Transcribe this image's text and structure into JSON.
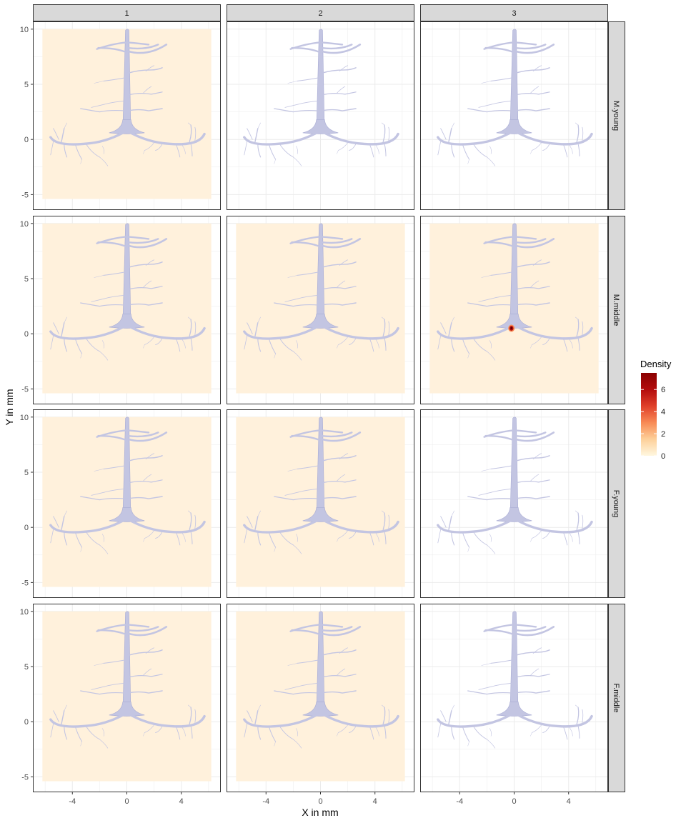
{
  "chart_data": {
    "type": "heatmap",
    "title": "",
    "xlabel": "X in mm",
    "ylabel": "Y in mm",
    "xlim": [
      -6.9,
      6.9
    ],
    "ylim": [
      -6.4,
      10.7
    ],
    "x_ticks": [
      -4,
      0,
      4
    ],
    "y_ticks": [
      -5,
      0,
      5,
      10
    ],
    "grid": true,
    "col_facets": [
      "1",
      "2",
      "3"
    ],
    "row_facets": [
      "M.young",
      "M.middle",
      "F.young",
      "F.middle"
    ],
    "density_region": {
      "x": [
        -6.2,
        6.2
      ],
      "y": [
        -5.4,
        10
      ]
    },
    "panels": [
      {
        "row": "M.young",
        "col": "1",
        "has_density": true,
        "hotspots": []
      },
      {
        "row": "M.young",
        "col": "2",
        "has_density": false,
        "hotspots": []
      },
      {
        "row": "M.young",
        "col": "3",
        "has_density": false,
        "hotspots": []
      },
      {
        "row": "M.middle",
        "col": "1",
        "has_density": true,
        "hotspots": []
      },
      {
        "row": "M.middle",
        "col": "2",
        "has_density": true,
        "hotspots": []
      },
      {
        "row": "M.middle",
        "col": "3",
        "has_density": true,
        "hotspots": [
          {
            "x": -0.2,
            "y": 0.5,
            "density": 7.5
          }
        ]
      },
      {
        "row": "F.young",
        "col": "1",
        "has_density": true,
        "hotspots": []
      },
      {
        "row": "F.young",
        "col": "2",
        "has_density": true,
        "hotspots": []
      },
      {
        "row": "F.young",
        "col": "3",
        "has_density": false,
        "hotspots": []
      },
      {
        "row": "F.middle",
        "col": "1",
        "has_density": true,
        "hotspots": []
      },
      {
        "row": "F.middle",
        "col": "2",
        "has_density": true,
        "hotspots": []
      },
      {
        "row": "F.middle",
        "col": "3",
        "has_density": false,
        "hotspots": []
      }
    ],
    "legend": {
      "title": "Density",
      "breaks": [
        0,
        2,
        4,
        6
      ],
      "range": [
        0,
        7.5
      ],
      "colors": [
        "#fff7e0",
        "#fdd09a",
        "#f88a55",
        "#e0402a",
        "#b30c0c",
        "#8a0000"
      ],
      "position": "right"
    },
    "colors": {
      "background_density": "#fff1dc",
      "tree_fill": "#c3c5e2",
      "tree_stroke": "#a9acd4",
      "grid": "#ebebeb",
      "strip": "#d9d9d9",
      "panel_border": "#333333"
    }
  }
}
